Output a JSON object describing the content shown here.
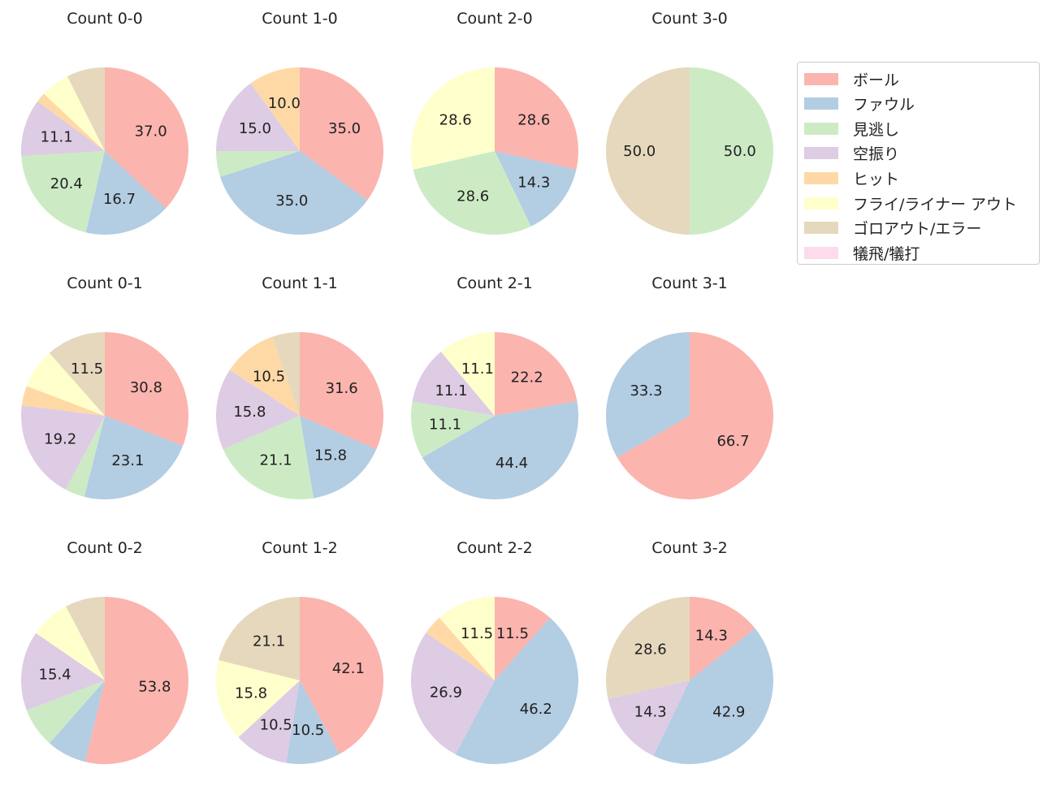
{
  "chart_data": {
    "type": "pie",
    "categories": [
      "ボール",
      "ファウル",
      "見逃し",
      "空振り",
      "ヒット",
      "フライ/ライナー アウト",
      "ゴロアウト/エラー",
      "犠飛/犠打"
    ],
    "colors": [
      "#fbb4ae",
      "#b3cde3",
      "#ccebc5",
      "#decbe4",
      "#fed9a6",
      "#ffffcc",
      "#e5d8bd",
      "#fddaec"
    ],
    "legend_position": "right",
    "label_format": "percent, one decimal, shown only for slices of 10% or more",
    "pies": [
      {
        "title": "Count 0-0",
        "values": [
          37.0,
          16.7,
          20.4,
          11.1,
          1.9,
          5.6,
          7.4,
          0
        ]
      },
      {
        "title": "Count 1-0",
        "values": [
          35.0,
          35.0,
          5.0,
          15.0,
          10.0,
          0,
          0,
          0
        ]
      },
      {
        "title": "Count 2-0",
        "values": [
          28.6,
          14.3,
          28.6,
          0,
          0,
          28.6,
          0,
          0
        ]
      },
      {
        "title": "Count 3-0",
        "values": [
          0,
          0,
          50.0,
          0,
          0,
          0,
          50.0,
          0
        ]
      },
      {
        "title": "Count 0-1",
        "values": [
          30.8,
          23.1,
          3.8,
          19.2,
          3.8,
          7.7,
          11.5,
          0
        ]
      },
      {
        "title": "Count 1-1",
        "values": [
          31.6,
          15.8,
          21.1,
          15.8,
          10.5,
          0,
          5.3,
          0
        ]
      },
      {
        "title": "Count 2-1",
        "values": [
          22.2,
          44.4,
          11.1,
          11.1,
          0,
          11.1,
          0,
          0
        ]
      },
      {
        "title": "Count 3-1",
        "values": [
          66.7,
          33.3,
          0,
          0,
          0,
          0,
          0,
          0
        ]
      },
      {
        "title": "Count 0-2",
        "values": [
          53.8,
          7.7,
          7.7,
          15.4,
          0,
          7.7,
          7.7,
          0
        ]
      },
      {
        "title": "Count 1-2",
        "values": [
          42.1,
          10.5,
          0,
          10.5,
          0,
          15.8,
          21.1,
          0
        ]
      },
      {
        "title": "Count 2-2",
        "values": [
          11.5,
          46.2,
          0,
          26.9,
          3.8,
          11.5,
          0,
          0
        ]
      },
      {
        "title": "Count 3-2",
        "values": [
          14.3,
          42.9,
          0,
          14.3,
          0,
          0,
          28.6,
          0
        ]
      }
    ]
  }
}
